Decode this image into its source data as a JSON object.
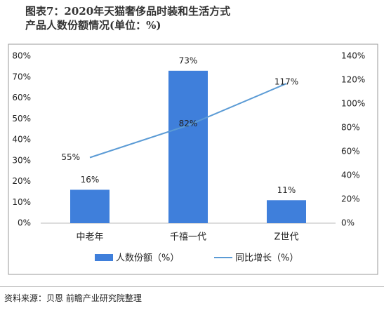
{
  "chart_data": {
    "type": "bar-line",
    "title": "图表7：2020年天猫奢侈品时装和生活方式产品人数份额情况(单位：%)",
    "categories": [
      "中老年",
      "千禧一代",
      "Z世代"
    ],
    "series": [
      {
        "name": "人数份额（%）",
        "type": "bar",
        "color": "#3f7fdb",
        "values": [
          16,
          73,
          11
        ],
        "value_labels": [
          "16%",
          "73%",
          "11%"
        ]
      },
      {
        "name": "同比增长（%）",
        "type": "line",
        "axis": "y2",
        "color": "#5b9bd5",
        "values": [
          55,
          82,
          117
        ],
        "value_labels": [
          "55%",
          "82%",
          "117%"
        ]
      }
    ],
    "ylim": [
      0,
      80
    ],
    "yticks": [
      {
        "value": 0,
        "label": "0%"
      },
      {
        "value": 10,
        "label": "10%"
      },
      {
        "value": 20,
        "label": "20%"
      },
      {
        "value": 30,
        "label": "30%"
      },
      {
        "value": 40,
        "label": "40%"
      },
      {
        "value": 50,
        "label": "50%"
      },
      {
        "value": 60,
        "label": "60%"
      },
      {
        "value": 70,
        "label": "70%"
      },
      {
        "value": 80,
        "label": "80%"
      }
    ],
    "y2lim": [
      0,
      140
    ],
    "y2ticks": [
      {
        "value": 0,
        "label": "0%"
      },
      {
        "value": 20,
        "label": "20%"
      },
      {
        "value": 40,
        "label": "40%"
      },
      {
        "value": 60,
        "label": "60%"
      },
      {
        "value": 80,
        "label": "80%"
      },
      {
        "value": 100,
        "label": "100%"
      },
      {
        "value": 120,
        "label": "120%"
      },
      {
        "value": 140,
        "label": "140%"
      }
    ],
    "source": "资料来源：贝恩 前瞻产业研究院整理"
  }
}
